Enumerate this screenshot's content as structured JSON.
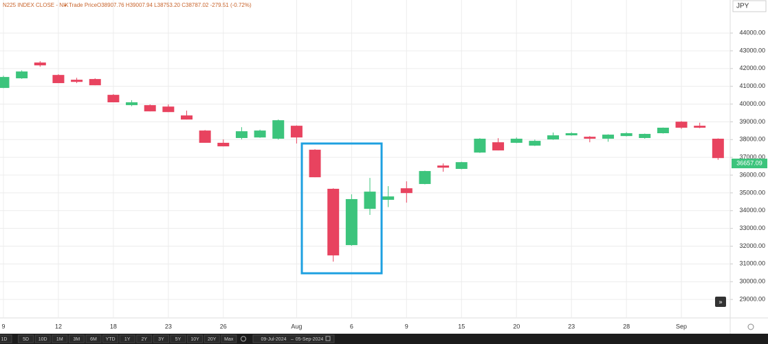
{
  "chart_data": {
    "type": "candlestick",
    "title": "N225 INDEX CLOSE - NIK",
    "price_type": "Trade Price",
    "quote": "O38907.76 H39007.94 L38753.20 C38787.02 -279.51 (-0.72%)",
    "currency": "JPY",
    "categories": [
      "9",
      null,
      null,
      "12",
      null,
      null,
      "18",
      null,
      null,
      "23",
      null,
      null,
      "26",
      null,
      null,
      null,
      "Aug",
      null,
      null,
      "6",
      null,
      null,
      "9",
      null,
      null,
      "15",
      null,
      null,
      "20",
      null,
      null,
      "23",
      null,
      null,
      "28",
      null,
      null,
      "Sep",
      null,
      null
    ],
    "open": [
      40908,
      41450,
      42340,
      41640,
      41370,
      41410,
      40520,
      39940,
      39940,
      39860,
      39360,
      38510,
      37820,
      38090,
      38120,
      38050,
      38780,
      37430,
      35230,
      32060,
      34100,
      34610,
      35260,
      35500,
      36540,
      36350,
      37270,
      37850,
      37820,
      37660,
      38010,
      38240,
      38160,
      38050,
      38200,
      38090,
      38360,
      39010,
      38780,
      38050
    ],
    "high": [
      41600,
      41900,
      42420,
      41680,
      41480,
      41450,
      40560,
      40220,
      39980,
      39980,
      39630,
      38540,
      38010,
      38700,
      38560,
      39130,
      38800,
      37460,
      35260,
      34920,
      35840,
      35380,
      35650,
      36250,
      36660,
      36750,
      38080,
      38080,
      38120,
      38000,
      38400,
      38420,
      38200,
      38300,
      38420,
      38340,
      38680,
      39040,
      38950,
      38070
    ],
    "low": [
      40900,
      41420,
      42100,
      41180,
      41180,
      41060,
      40100,
      39880,
      39590,
      39550,
      39130,
      37820,
      37620,
      38010,
      38100,
      38000,
      37780,
      35880,
      31130,
      32020,
      33760,
      34200,
      34450,
      35480,
      36190,
      36330,
      37250,
      37390,
      37800,
      37640,
      37990,
      38220,
      37850,
      37880,
      38180,
      38050,
      38340,
      38600,
      38640,
      36860
    ],
    "close": [
      41526,
      41835,
      42180,
      41180,
      41250,
      41060,
      40100,
      40100,
      39590,
      39550,
      39130,
      37820,
      37620,
      38470,
      38510,
      39090,
      38120,
      35880,
      31480,
      34650,
      35070,
      34800,
      34990,
      36230,
      36420,
      36730,
      38050,
      37390,
      38050,
      37930,
      38240,
      38360,
      38050,
      38280,
      38360,
      38320,
      38670,
      38670,
      38670,
      36960
    ],
    "up_color": "#3cc47c",
    "down_color": "#e8435f",
    "last_price": 36657.09,
    "ylim": [
      27960,
      45860
    ],
    "yticks": [
      {
        "value": 29000,
        "label": "29000.00"
      },
      {
        "value": 30000,
        "label": "30000.00"
      },
      {
        "value": 31000,
        "label": "31000.00"
      },
      {
        "value": 32000,
        "label": "32000.00"
      },
      {
        "value": 33000,
        "label": "33000.00"
      },
      {
        "value": 34000,
        "label": "34000.00"
      },
      {
        "value": 35000,
        "label": "35000.00"
      },
      {
        "value": 36000,
        "label": "36000.00"
      },
      {
        "value": 37000,
        "label": "37000.00"
      },
      {
        "value": 38000,
        "label": "38000.00"
      },
      {
        "value": 39000,
        "label": "39000.00"
      },
      {
        "value": 40000,
        "label": "40000.00"
      },
      {
        "value": 41000,
        "label": "41000.00"
      },
      {
        "value": 42000,
        "label": "42000.00"
      },
      {
        "value": 43000,
        "label": "43000.00"
      },
      {
        "value": 44000,
        "label": "44000.00"
      }
    ],
    "grid": true,
    "range_buttons": [
      "1D",
      "5D",
      "10D",
      "1M",
      "3M",
      "6M",
      "YTD",
      "1Y",
      "2Y",
      "3Y",
      "5Y",
      "10Y",
      "20Y",
      "Max"
    ],
    "date_range": [
      "09-Jul-2024",
      "05-Sep-2024"
    ]
  }
}
